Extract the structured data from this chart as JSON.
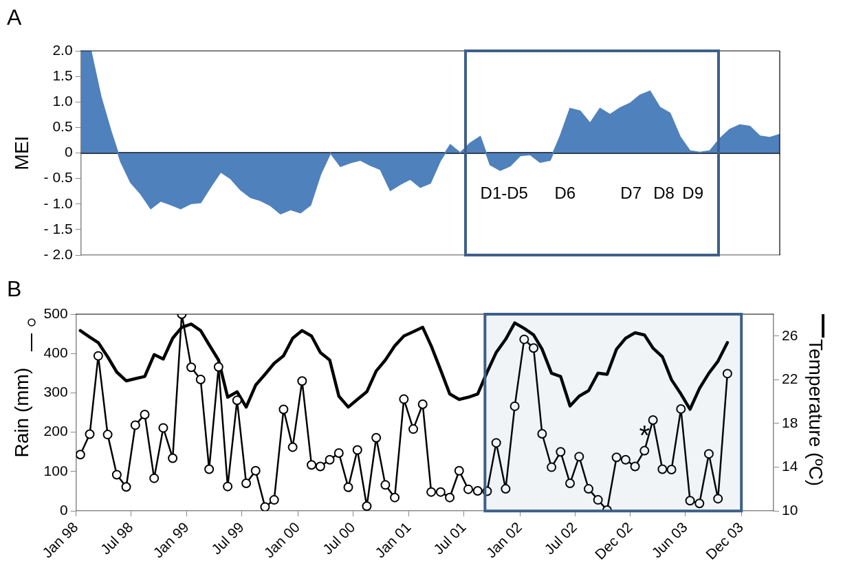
{
  "chart_data": [
    {
      "type": "area",
      "title": "A",
      "ylabel": "MEI",
      "categories": [
        null,
        null,
        null,
        null,
        null,
        null,
        null,
        null,
        null,
        null,
        null,
        null,
        null,
        null,
        null,
        null,
        null,
        null,
        null,
        null,
        null,
        null,
        null,
        null,
        null,
        null,
        null,
        null,
        null,
        null,
        null,
        null,
        null,
        null,
        null,
        null,
        null,
        null,
        null,
        null,
        null,
        null,
        null,
        null,
        null,
        null,
        null,
        null,
        null,
        null,
        null,
        null,
        null,
        null,
        null,
        null,
        null,
        null,
        null,
        null,
        null,
        null,
        null,
        null,
        null,
        null,
        null,
        null,
        null,
        null,
        null
      ],
      "values": [
        2.0,
        2.0,
        1.1,
        0.43,
        -0.17,
        -0.58,
        -0.8,
        -1.09,
        -0.94,
        -1.01,
        -1.09,
        -0.99,
        -0.97,
        -0.66,
        -0.37,
        -0.5,
        -0.72,
        -0.87,
        -0.93,
        -1.03,
        -1.19,
        -1.11,
        -1.17,
        -1.02,
        -0.42,
        0.0,
        -0.26,
        -0.19,
        -0.14,
        -0.24,
        -0.32,
        -0.73,
        -0.61,
        -0.51,
        -0.67,
        -0.59,
        -0.15,
        0.16,
        0.0,
        0.19,
        0.32,
        -0.23,
        -0.34,
        -0.25,
        -0.05,
        -0.03,
        -0.18,
        -0.14,
        0.32,
        0.87,
        0.82,
        0.58,
        0.87,
        0.75,
        0.88,
        0.97,
        1.13,
        1.21,
        0.89,
        0.78,
        0.32,
        0.04,
        0.01,
        0.04,
        0.28,
        0.46,
        0.55,
        0.52,
        0.33,
        0.3,
        0.36
      ],
      "color": "#4f81bd",
      "ylim": [
        -2,
        2
      ],
      "yticks": [
        {
          "value": -2,
          "label": "- 2.0"
        },
        {
          "value": -1.5,
          "label": "- 1.5"
        },
        {
          "value": -1,
          "label": "- 1.0"
        },
        {
          "value": -0.5,
          "label": "- 0.5"
        },
        {
          "value": 0,
          "label": "0"
        },
        {
          "value": 0.5,
          "label": "0.5"
        },
        {
          "value": 1,
          "label": "1.0"
        },
        {
          "value": 1.5,
          "label": "1.5"
        },
        {
          "value": 2,
          "label": "2.0"
        }
      ],
      "tick_labels": "y",
      "annotations": [
        "D1-D5",
        "D6",
        "D7",
        "D8",
        "D9"
      ]
    },
    {
      "type": "line",
      "title": "B",
      "ylabel": "Rain (mm)",
      "y2label": "Temperature (ºC)",
      "x": [
        "1998-01-15",
        "1998-02-15",
        "1998-03-15",
        "1998-04-15",
        "1998-05-15",
        "1998-06-15",
        "1998-07-15",
        "1998-08-15",
        "1998-09-15",
        "1998-10-15",
        "1998-11-15",
        "1998-12-15",
        "1999-01-15",
        "1999-02-15",
        "1999-03-15",
        "1999-04-15",
        "1999-05-15",
        "1999-06-15",
        "1999-07-15",
        "1999-08-15",
        "1999-09-15",
        "1999-10-15",
        "1999-11-15",
        "1999-12-15",
        "2000-01-15",
        "2000-02-15",
        "2000-03-15",
        "2000-04-15",
        "2000-05-15",
        "2000-06-15",
        "2000-07-15",
        "2000-08-15",
        "2000-09-15",
        "2000-10-15",
        "2000-11-15",
        "2000-12-15",
        "2001-01-15",
        "2001-02-15",
        "2001-03-15",
        "2001-04-15",
        "2001-05-15",
        "2001-06-15",
        "2001-07-15",
        "2001-08-15",
        "2001-09-15",
        "2001-10-15",
        "2001-11-15",
        "2001-12-15",
        "2002-01-15",
        "2002-02-15",
        "2002-03-15",
        "2002-04-15",
        "2002-05-15",
        "2002-06-15",
        "2002-07-15",
        "2002-08-15",
        "2002-09-15",
        "2002-10-15",
        "2002-11-15",
        "2002-12-15",
        "2003-01-15",
        "2003-02-15",
        "2003-03-15",
        "2003-04-15",
        "2003-05-15",
        "2003-06-15",
        "2003-07-15",
        "2003-08-15",
        "2003-09-15",
        "2003-10-15",
        "2003-11-15"
      ],
      "series": [
        {
          "color": "#000000",
          "marker": "circle",
          "values": [
            143,
            195,
            394,
            194,
            92,
            61,
            218,
            245,
            83,
            211,
            134,
            500,
            365,
            334,
            106,
            366,
            62,
            281,
            70,
            102,
            10,
            28,
            258,
            162,
            330,
            117,
            113,
            130,
            147,
            60,
            155,
            12,
            186,
            66,
            34,
            284,
            208,
            271,
            48,
            48,
            34,
            102,
            55,
            51,
            50,
            173,
            56,
            266,
            436,
            414,
            196,
            111,
            150,
            70,
            138,
            56,
            28,
            2,
            136,
            130,
            113,
            153,
            231,
            106,
            105,
            259,
            26,
            19,
            145,
            31,
            349
          ]
        },
        {
          "color": "#000000",
          "marker": "none",
          "axis": "y2",
          "values": [
            26.5,
            25.9,
            25.4,
            24.1,
            22.7,
            21.9,
            22.1,
            22.3,
            24.3,
            23.9,
            25.8,
            26.8,
            27.1,
            26.5,
            25.2,
            23.8,
            20.4,
            20.9,
            19.5,
            21.5,
            22.5,
            23.5,
            24.2,
            25.8,
            26.5,
            26.0,
            24.5,
            23.8,
            20.5,
            19.5,
            20.2,
            20.9,
            22.8,
            23.8,
            25.1,
            26.0,
            26.4,
            26.8,
            25.1,
            22.9,
            20.7,
            20.2,
            20.4,
            20.7,
            22.7,
            24.5,
            25.7,
            27.2,
            26.7,
            26.1,
            24.8,
            22.6,
            22.3,
            19.6,
            20.5,
            21.0,
            22.6,
            22.5,
            24.8,
            25.8,
            26.3,
            26.1,
            24.9,
            24.1,
            22.0,
            20.7,
            19.3,
            21.2,
            22.6,
            23.7,
            25.4
          ]
        }
      ],
      "xlim": [
        "1998-01-01",
        "2004-04-15"
      ],
      "xticks": [
        {
          "value": "1998-01-01",
          "label": "Jan 98"
        },
        {
          "value": "1998-07-01",
          "label": "Jul 98"
        },
        {
          "value": "1999-01-01",
          "label": "Jan 99"
        },
        {
          "value": "1999-07-01",
          "label": "Jul 99"
        },
        {
          "value": "2000-01-01",
          "label": "Jan 00"
        },
        {
          "value": "2000-07-01",
          "label": "Jul 00"
        },
        {
          "value": "2001-01-01",
          "label": "Jan 01"
        },
        {
          "value": "2001-07-01",
          "label": "Jul 01"
        },
        {
          "value": "2002-01-01",
          "label": "Jan 02"
        },
        {
          "value": "2002-07-01",
          "label": "Jul 02"
        },
        {
          "value": "2002-12-31",
          "label": "Dec 02"
        },
        {
          "value": "2003-06-30",
          "label": "Jun 03"
        },
        {
          "value": "2003-12-31",
          "label": "Dec 03"
        }
      ],
      "ylim": [
        0,
        500
      ],
      "yticks": [
        0,
        100,
        200,
        300,
        400,
        500
      ],
      "y2lim": [
        10,
        28
      ],
      "y2ticks": [
        10,
        14,
        18,
        22,
        26
      ],
      "bands": [
        {
          "axis": "x",
          "from": "2001-09-08",
          "to": "2003-12-31",
          "color": "#3e5f8a"
        }
      ],
      "annotations": [
        {
          "text": "*",
          "x": "2003-02-15",
          "y": 188
        }
      ]
    }
  ]
}
